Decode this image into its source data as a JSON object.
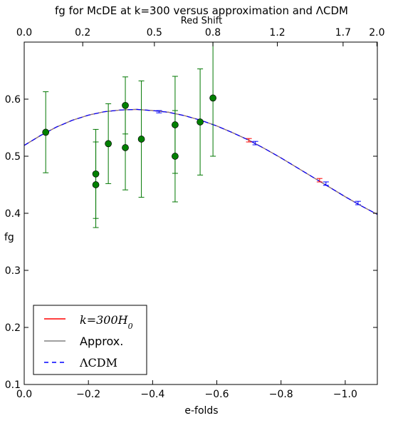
{
  "chart_data": {
    "type": "line",
    "title": "fg for McDE at k=300 versus approximation and ΛCDM",
    "xlabel": "e-folds",
    "ylabel": "fg",
    "top_xlabel": "Red Shift",
    "xlim": [
      0.0,
      -1.1
    ],
    "ylim": [
      0.1,
      0.7
    ],
    "x_ticks": [
      0.0,
      -0.2,
      -0.4,
      -0.6,
      -0.8,
      -1.0
    ],
    "x_tick_labels": [
      "0.0",
      "−0.2",
      "−0.4",
      "−0.6",
      "−0.8",
      "−1.0"
    ],
    "y_ticks": [
      0.1,
      0.2,
      0.3,
      0.4,
      0.5,
      0.6
    ],
    "y_tick_labels": [
      "0.1",
      "0.2",
      "0.3",
      "0.4",
      "0.5",
      "0.6"
    ],
    "top_ticks": [
      {
        "label": "0.0",
        "at": 0.0
      },
      {
        "label": "0.2",
        "at": -0.1823
      },
      {
        "label": "0.5",
        "at": -0.4055
      },
      {
        "label": "0.8",
        "at": -0.5878
      },
      {
        "label": "1.2",
        "at": -0.7885
      },
      {
        "label": "1.7",
        "at": -0.9933
      },
      {
        "label": "2.0",
        "at": -1.0986
      }
    ],
    "grid": false,
    "legend_position": "lower-left",
    "series": [
      {
        "name": "k=300H0",
        "color": "#ff0000",
        "style": "solid",
        "x": [
          0.0,
          -0.05,
          -0.1,
          -0.15,
          -0.2,
          -0.25,
          -0.3,
          -0.35,
          -0.4,
          -0.45,
          -0.5,
          -0.55,
          -0.6,
          -0.65,
          -0.7,
          -0.75,
          -0.8,
          -0.85,
          -0.9,
          -0.95,
          -1.0,
          -1.05,
          -1.1
        ],
        "y": [
          0.519,
          0.536,
          0.551,
          0.563,
          0.572,
          0.578,
          0.581,
          0.582,
          0.58,
          0.577,
          0.571,
          0.563,
          0.553,
          0.541,
          0.528,
          0.513,
          0.497,
          0.48,
          0.463,
          0.446,
          0.429,
          0.413,
          0.398
        ]
      },
      {
        "name": "Approx.",
        "color": "#808080",
        "style": "solid",
        "x": [
          0.0,
          -0.05,
          -0.1,
          -0.15,
          -0.2,
          -0.25,
          -0.3,
          -0.35,
          -0.4,
          -0.45,
          -0.5,
          -0.55,
          -0.6,
          -0.65,
          -0.7,
          -0.75,
          -0.8,
          -0.85,
          -0.9,
          -0.95,
          -1.0,
          -1.05,
          -1.1
        ],
        "y": [
          0.519,
          0.536,
          0.551,
          0.563,
          0.572,
          0.578,
          0.581,
          0.582,
          0.58,
          0.577,
          0.571,
          0.563,
          0.553,
          0.541,
          0.528,
          0.513,
          0.497,
          0.48,
          0.463,
          0.446,
          0.429,
          0.413,
          0.398
        ]
      },
      {
        "name": "ΛCDM",
        "color": "#0000ff",
        "style": "dashed",
        "x": [
          0.0,
          -0.05,
          -0.1,
          -0.15,
          -0.2,
          -0.25,
          -0.3,
          -0.35,
          -0.4,
          -0.45,
          -0.5,
          -0.55,
          -0.6,
          -0.65,
          -0.7,
          -0.75,
          -0.8,
          -0.85,
          -0.9,
          -0.95,
          -1.0,
          -1.05,
          -1.1
        ],
        "y": [
          0.519,
          0.536,
          0.551,
          0.563,
          0.572,
          0.578,
          0.581,
          0.582,
          0.58,
          0.577,
          0.571,
          0.563,
          0.553,
          0.541,
          0.528,
          0.513,
          0.497,
          0.48,
          0.463,
          0.446,
          0.429,
          0.413,
          0.398
        ]
      }
    ],
    "curve_error_bars": [
      {
        "x": -0.42,
        "y": 0.578,
        "err": 0.002,
        "color": "#0000ff"
      },
      {
        "x": -0.7,
        "y": 0.528,
        "err": 0.003,
        "color": "#ff0000"
      },
      {
        "x": -0.72,
        "y": 0.523,
        "err": 0.003,
        "color": "#0000ff"
      },
      {
        "x": -0.92,
        "y": 0.458,
        "err": 0.003,
        "color": "#ff0000"
      },
      {
        "x": -0.94,
        "y": 0.452,
        "err": 0.003,
        "color": "#0000ff"
      },
      {
        "x": -1.04,
        "y": 0.418,
        "err": 0.003,
        "color": "#0000ff"
      }
    ],
    "observations": {
      "color": "#007700",
      "marker_color": "#008000",
      "points": [
        {
          "x": -0.067,
          "y": 0.542,
          "err": 0.071
        },
        {
          "x": -0.223,
          "y": 0.469,
          "err": 0.078
        },
        {
          "x": -0.223,
          "y": 0.45,
          "err": 0.075
        },
        {
          "x": -0.262,
          "y": 0.522,
          "err": 0.07
        },
        {
          "x": -0.315,
          "y": 0.589,
          "err": 0.05
        },
        {
          "x": -0.315,
          "y": 0.515,
          "err": 0.074
        },
        {
          "x": -0.365,
          "y": 0.53,
          "err": 0.102
        },
        {
          "x": -0.47,
          "y": 0.555,
          "err": 0.085
        },
        {
          "x": -0.47,
          "y": 0.5,
          "err": 0.08
        },
        {
          "x": -0.548,
          "y": 0.56,
          "err": 0.093
        },
        {
          "x": -0.588,
          "y": 0.602,
          "err": 0.102
        }
      ]
    }
  }
}
